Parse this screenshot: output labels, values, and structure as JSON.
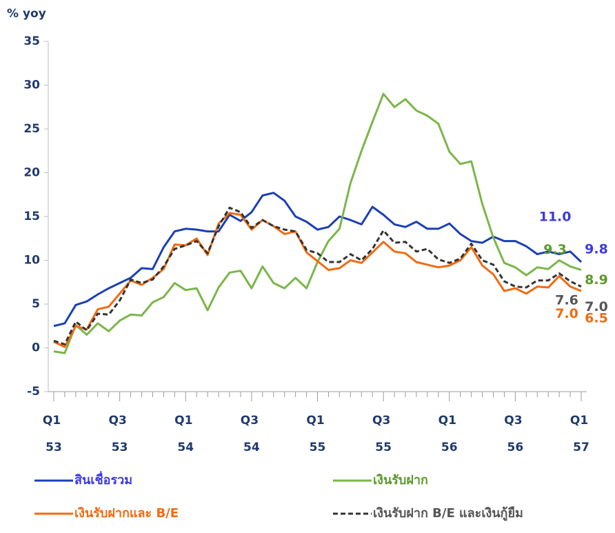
{
  "chart_data": {
    "type": "line",
    "y_label": "% yoy",
    "categories": [
      "Q1 53",
      null,
      null,
      null,
      null,
      null,
      "Q3 53",
      null,
      null,
      null,
      null,
      null,
      "Q1 54",
      null,
      null,
      null,
      null,
      null,
      "Q3 54",
      null,
      null,
      null,
      null,
      null,
      "Q1 55",
      null,
      null,
      null,
      null,
      null,
      "Q3 55",
      null,
      null,
      null,
      null,
      null,
      "Q1 56",
      null,
      null,
      null,
      null,
      null,
      "Q3 56",
      null,
      null,
      null,
      null,
      null,
      "Q1 57"
    ],
    "ylim": [
      -5,
      35
    ],
    "yticks": [
      -5,
      0,
      5,
      10,
      15,
      20,
      25,
      30,
      35
    ],
    "legend": "bottom",
    "series": [
      {
        "name": "สินเชื่อรวม",
        "color": "#1a3fb5",
        "label_color": "#3b3be0",
        "values": [
          2.5,
          2.8,
          4.9,
          5.3,
          6.1,
          6.8,
          7.4,
          8.0,
          9.1,
          9.0,
          11.5,
          13.3,
          13.6,
          13.5,
          13.3,
          13.3,
          15.2,
          14.5,
          15.5,
          17.4,
          17.7,
          16.8,
          15.0,
          14.4,
          13.5,
          13.8,
          15.0,
          14.6,
          14.1,
          16.1,
          15.2,
          14.1,
          13.8,
          14.4,
          13.6,
          13.6,
          14.2,
          13.0,
          12.2,
          12.0,
          12.7,
          12.2,
          12.2,
          11.6,
          10.7,
          11.0,
          10.7,
          11.0,
          9.8
        ],
        "value_labels": [
          null,
          null,
          null,
          null,
          null,
          null,
          null,
          null,
          null,
          null,
          null,
          null,
          null,
          null,
          null,
          null,
          null,
          null,
          null,
          null,
          null,
          null,
          null,
          null,
          null,
          null,
          null,
          null,
          null,
          null,
          null,
          null,
          null,
          null,
          null,
          null,
          null,
          null,
          null,
          null,
          null,
          null,
          null,
          null,
          null,
          null,
          null,
          "11.0",
          "9.8"
        ]
      },
      {
        "name": "เงินรับฝาก",
        "color": "#7ab648",
        "label_color": "#5a9a2a",
        "values": [
          -0.4,
          -0.6,
          2.6,
          1.5,
          2.8,
          1.9,
          3.1,
          3.8,
          3.7,
          5.2,
          5.8,
          7.4,
          6.6,
          6.8,
          4.3,
          6.9,
          8.6,
          8.8,
          6.8,
          9.3,
          7.4,
          6.8,
          8.0,
          6.8,
          9.8,
          12.2,
          13.6,
          18.8,
          22.5,
          25.8,
          29.0,
          27.5,
          28.4,
          27.1,
          26.5,
          25.6,
          22.4,
          21.0,
          21.3,
          16.4,
          12.6,
          9.7,
          9.2,
          8.3,
          9.2,
          9.0,
          10.0,
          9.3,
          8.9
        ],
        "value_labels": [
          null,
          null,
          null,
          null,
          null,
          null,
          null,
          null,
          null,
          null,
          null,
          null,
          null,
          null,
          null,
          null,
          null,
          null,
          null,
          null,
          null,
          null,
          null,
          null,
          null,
          null,
          null,
          null,
          null,
          null,
          null,
          null,
          null,
          null,
          null,
          null,
          null,
          null,
          null,
          null,
          null,
          null,
          null,
          null,
          null,
          null,
          null,
          "9.3",
          "8.9"
        ]
      },
      {
        "name": "เงินรับฝากและ B/E",
        "color": "#f26a10",
        "label_color": "#f26a10",
        "values": [
          0.7,
          0.1,
          2.5,
          2.1,
          4.4,
          4.7,
          6.2,
          7.7,
          7.2,
          8.0,
          9.0,
          11.8,
          11.7,
          12.5,
          10.6,
          14.2,
          15.4,
          15.2,
          13.5,
          14.6,
          13.9,
          13.0,
          13.3,
          10.9,
          9.9,
          8.9,
          9.1,
          10.0,
          9.7,
          10.9,
          12.1,
          11.0,
          10.8,
          9.8,
          9.5,
          9.2,
          9.4,
          10.0,
          11.5,
          9.4,
          8.4,
          6.5,
          6.8,
          6.2,
          7.0,
          6.9,
          8.2,
          7.0,
          6.5
        ],
        "value_labels": [
          null,
          null,
          null,
          null,
          null,
          null,
          null,
          null,
          null,
          null,
          null,
          null,
          null,
          null,
          null,
          null,
          null,
          null,
          null,
          null,
          null,
          null,
          null,
          null,
          null,
          null,
          null,
          null,
          null,
          null,
          null,
          null,
          null,
          null,
          null,
          null,
          null,
          null,
          null,
          null,
          null,
          null,
          null,
          null,
          null,
          null,
          null,
          "7.0",
          "6.5"
        ]
      },
      {
        "name": "เงินรับฝาก B/E และเงินกู้ยืม",
        "color": "#333333",
        "label_color": "#555555",
        "dashed": true,
        "values": [
          0.8,
          0.4,
          3.0,
          2.0,
          3.9,
          3.8,
          5.4,
          7.8,
          7.4,
          7.8,
          9.3,
          11.3,
          11.7,
          12.2,
          10.8,
          13.9,
          16.0,
          15.5,
          13.7,
          14.6,
          13.9,
          13.5,
          13.3,
          11.2,
          10.8,
          9.8,
          9.8,
          10.7,
          10.0,
          11.3,
          13.4,
          12.0,
          12.1,
          11.0,
          11.3,
          10.1,
          9.7,
          10.2,
          11.9,
          10.0,
          9.5,
          7.6,
          7.0,
          6.9,
          7.7,
          7.7,
          8.5,
          7.6,
          7.0
        ],
        "value_labels": [
          null,
          null,
          null,
          null,
          null,
          null,
          null,
          null,
          null,
          null,
          null,
          null,
          null,
          null,
          null,
          null,
          null,
          null,
          null,
          null,
          null,
          null,
          null,
          null,
          null,
          null,
          null,
          null,
          null,
          null,
          null,
          null,
          null,
          null,
          null,
          null,
          null,
          null,
          null,
          null,
          null,
          null,
          null,
          null,
          null,
          null,
          null,
          "7.6",
          "7.0"
        ]
      }
    ]
  }
}
